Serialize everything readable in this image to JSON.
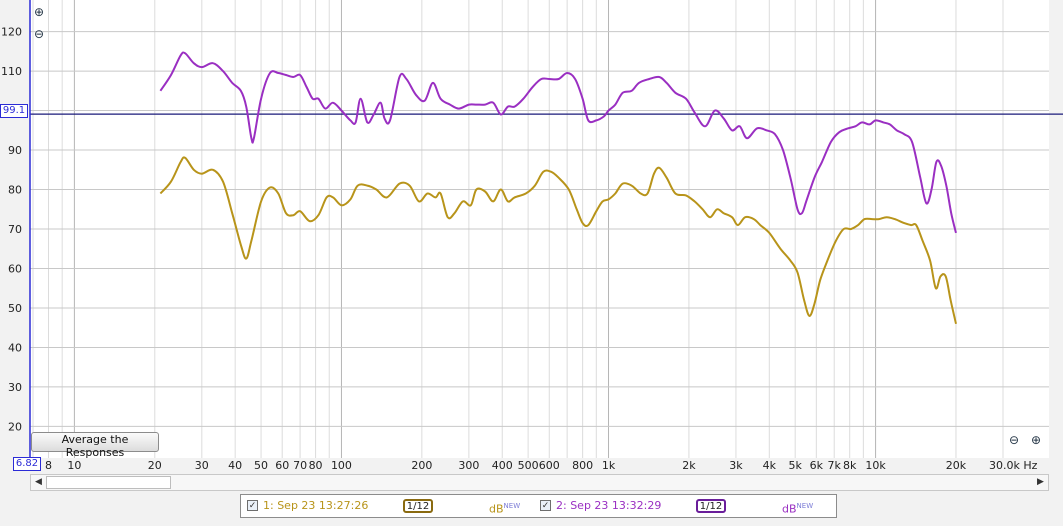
{
  "chart_data": {
    "type": "line",
    "title": "",
    "xlabel": "",
    "ylabel": "",
    "x_scale": "log",
    "x_unit": "Hz",
    "xlim": [
      6.82,
      30000
    ],
    "ylim": [
      12,
      128
    ],
    "x_ticks": [
      {
        "v": 8,
        "label": "8"
      },
      {
        "v": 10,
        "label": "10"
      },
      {
        "v": 20,
        "label": "20"
      },
      {
        "v": 30,
        "label": "30"
      },
      {
        "v": 40,
        "label": "40"
      },
      {
        "v": 50,
        "label": "50"
      },
      {
        "v": 60,
        "label": "60"
      },
      {
        "v": 70,
        "label": "70"
      },
      {
        "v": 80,
        "label": "80"
      },
      {
        "v": 100,
        "label": "100"
      },
      {
        "v": 200,
        "label": "200"
      },
      {
        "v": 300,
        "label": "300"
      },
      {
        "v": 400,
        "label": "400"
      },
      {
        "v": 500,
        "label": "500"
      },
      {
        "v": 600,
        "label": "600"
      },
      {
        "v": 800,
        "label": "800"
      },
      {
        "v": 1000,
        "label": "1k"
      },
      {
        "v": 2000,
        "label": "2k"
      },
      {
        "v": 3000,
        "label": "3k"
      },
      {
        "v": 4000,
        "label": "4k"
      },
      {
        "v": 5000,
        "label": "5k"
      },
      {
        "v": 6000,
        "label": "6k"
      },
      {
        "v": 7000,
        "label": "7k"
      },
      {
        "v": 8000,
        "label": "8k"
      },
      {
        "v": 10000,
        "label": "10k"
      },
      {
        "v": 20000,
        "label": "20k"
      },
      {
        "v": 30000,
        "label": "30.0k Hz"
      }
    ],
    "y_ticks": [
      20,
      30,
      40,
      50,
      60,
      70,
      80,
      90,
      110,
      120
    ],
    "grid": true,
    "marker_value": 99.1,
    "series": [
      {
        "label": "1: Sep 23 13:27:26",
        "color": "#b8941a",
        "smoothing": "1/12",
        "unit_label": "dB",
        "unit_badge": "NEW",
        "points": [
          [
            21,
            79
          ],
          [
            23,
            82
          ],
          [
            25,
            87
          ],
          [
            26,
            88
          ],
          [
            28,
            85
          ],
          [
            30,
            84
          ],
          [
            33,
            85
          ],
          [
            36,
            82
          ],
          [
            39,
            74
          ],
          [
            42,
            66
          ],
          [
            44,
            62.5
          ],
          [
            46,
            67
          ],
          [
            50,
            77
          ],
          [
            54,
            80.5
          ],
          [
            58,
            79
          ],
          [
            62,
            74
          ],
          [
            66,
            73.5
          ],
          [
            70,
            74.5
          ],
          [
            76,
            72
          ],
          [
            82,
            73.5
          ],
          [
            88,
            78
          ],
          [
            93,
            78
          ],
          [
            100,
            76
          ],
          [
            108,
            77.5
          ],
          [
            115,
            81
          ],
          [
            125,
            81
          ],
          [
            135,
            80
          ],
          [
            148,
            78
          ],
          [
            165,
            81.5
          ],
          [
            180,
            81
          ],
          [
            195,
            77
          ],
          [
            210,
            79
          ],
          [
            225,
            78
          ],
          [
            235,
            79
          ],
          [
            250,
            73
          ],
          [
            265,
            74
          ],
          [
            285,
            77
          ],
          [
            305,
            76
          ],
          [
            320,
            80
          ],
          [
            345,
            79.5
          ],
          [
            370,
            77
          ],
          [
            395,
            80
          ],
          [
            420,
            77
          ],
          [
            445,
            78
          ],
          [
            490,
            79
          ],
          [
            530,
            81
          ],
          [
            570,
            84.5
          ],
          [
            610,
            84.5
          ],
          [
            650,
            83
          ],
          [
            710,
            80
          ],
          [
            760,
            75
          ],
          [
            800,
            71.5
          ],
          [
            840,
            71
          ],
          [
            900,
            74.5
          ],
          [
            950,
            77
          ],
          [
            1000,
            77.5
          ],
          [
            1060,
            79
          ],
          [
            1130,
            81.5
          ],
          [
            1220,
            81
          ],
          [
            1320,
            79
          ],
          [
            1400,
            79
          ],
          [
            1480,
            84
          ],
          [
            1550,
            85.5
          ],
          [
            1650,
            83
          ],
          [
            1780,
            79
          ],
          [
            1950,
            78.5
          ],
          [
            2100,
            77
          ],
          [
            2250,
            75
          ],
          [
            2400,
            73
          ],
          [
            2550,
            75
          ],
          [
            2700,
            74
          ],
          [
            2900,
            73
          ],
          [
            3050,
            71
          ],
          [
            3250,
            73
          ],
          [
            3500,
            72.5
          ],
          [
            3700,
            71
          ],
          [
            4000,
            69
          ],
          [
            4400,
            65
          ],
          [
            4800,
            62
          ],
          [
            5100,
            59
          ],
          [
            5400,
            52
          ],
          [
            5650,
            48
          ],
          [
            5900,
            51
          ],
          [
            6200,
            57
          ],
          [
            6600,
            62
          ],
          [
            7100,
            67
          ],
          [
            7600,
            70
          ],
          [
            8100,
            70
          ],
          [
            8600,
            71
          ],
          [
            9100,
            72.5
          ],
          [
            9700,
            72.5
          ],
          [
            10300,
            72.5
          ],
          [
            11000,
            73
          ],
          [
            11800,
            72.5
          ],
          [
            12800,
            71.5
          ],
          [
            13600,
            71
          ],
          [
            14200,
            71
          ],
          [
            15000,
            67
          ],
          [
            16000,
            62
          ],
          [
            16800,
            55
          ],
          [
            17500,
            58
          ],
          [
            18300,
            58
          ],
          [
            19100,
            52
          ],
          [
            20000,
            46
          ]
        ]
      },
      {
        "label": "2: Sep 23 13:32:29",
        "color": "#9a2fc2",
        "smoothing": "1/12",
        "unit_label": "dB",
        "unit_badge": "NEW",
        "points": [
          [
            21,
            105
          ],
          [
            23,
            109
          ],
          [
            25,
            114
          ],
          [
            26,
            114.5
          ],
          [
            28,
            112
          ],
          [
            30,
            111
          ],
          [
            33,
            112
          ],
          [
            36,
            110
          ],
          [
            39,
            107
          ],
          [
            42,
            105
          ],
          [
            44,
            101
          ],
          [
            46,
            93
          ],
          [
            47,
            93
          ],
          [
            50,
            103
          ],
          [
            54,
            109.5
          ],
          [
            58,
            109.5
          ],
          [
            62,
            109
          ],
          [
            66,
            108.5
          ],
          [
            70,
            109
          ],
          [
            74,
            106
          ],
          [
            78,
            103
          ],
          [
            82,
            103
          ],
          [
            87,
            100.5
          ],
          [
            93,
            102
          ],
          [
            100,
            100
          ],
          [
            108,
            97.5
          ],
          [
            113,
            97
          ],
          [
            118,
            103
          ],
          [
            125,
            97
          ],
          [
            132,
            99
          ],
          [
            140,
            102
          ],
          [
            145,
            98
          ],
          [
            152,
            97.5
          ],
          [
            165,
            108.5
          ],
          [
            175,
            108
          ],
          [
            190,
            104
          ],
          [
            205,
            102.5
          ],
          [
            220,
            107
          ],
          [
            235,
            103
          ],
          [
            255,
            101.5
          ],
          [
            275,
            100.5
          ],
          [
            300,
            101.5
          ],
          [
            320,
            101.5
          ],
          [
            345,
            101.5
          ],
          [
            370,
            102
          ],
          [
            395,
            99
          ],
          [
            420,
            101
          ],
          [
            445,
            101
          ],
          [
            480,
            103
          ],
          [
            520,
            106
          ],
          [
            560,
            108
          ],
          [
            600,
            108
          ],
          [
            650,
            108
          ],
          [
            700,
            109.5
          ],
          [
            750,
            108
          ],
          [
            800,
            103
          ],
          [
            840,
            97.5
          ],
          [
            900,
            97.5
          ],
          [
            960,
            98.5
          ],
          [
            1000,
            100
          ],
          [
            1060,
            101.5
          ],
          [
            1130,
            104.5
          ],
          [
            1220,
            105
          ],
          [
            1300,
            107
          ],
          [
            1420,
            108
          ],
          [
            1550,
            108.5
          ],
          [
            1650,
            107
          ],
          [
            1780,
            104.5
          ],
          [
            1950,
            103
          ],
          [
            2100,
            99.5
          ],
          [
            2300,
            96
          ],
          [
            2500,
            100
          ],
          [
            2700,
            98
          ],
          [
            2900,
            95
          ],
          [
            3100,
            96
          ],
          [
            3300,
            93
          ],
          [
            3600,
            95.5
          ],
          [
            3900,
            95
          ],
          [
            4200,
            94
          ],
          [
            4500,
            90
          ],
          [
            4800,
            83
          ],
          [
            5100,
            75
          ],
          [
            5300,
            74
          ],
          [
            5500,
            77
          ],
          [
            5900,
            83
          ],
          [
            6300,
            87
          ],
          [
            6800,
            92
          ],
          [
            7300,
            94.5
          ],
          [
            7900,
            95.5
          ],
          [
            8400,
            96
          ],
          [
            8900,
            97
          ],
          [
            9500,
            96.5
          ],
          [
            10000,
            97.5
          ],
          [
            10700,
            97
          ],
          [
            11300,
            96.5
          ],
          [
            12000,
            95
          ],
          [
            12800,
            94
          ],
          [
            13700,
            92
          ],
          [
            14700,
            83
          ],
          [
            15500,
            76.5
          ],
          [
            16200,
            80
          ],
          [
            16900,
            87
          ],
          [
            17600,
            86
          ],
          [
            18400,
            81
          ],
          [
            19200,
            74
          ],
          [
            20000,
            69
          ]
        ]
      }
    ]
  },
  "controls": {
    "average_button": "Average the Responses",
    "y_min_value": "6.82",
    "marker_label": "99.1"
  },
  "icons": {
    "zoom_in": "magnifier-plus-icon",
    "zoom_out": "magnifier-minus-icon",
    "scroll_left": "arrow-left-icon",
    "scroll_right": "arrow-right-icon"
  }
}
